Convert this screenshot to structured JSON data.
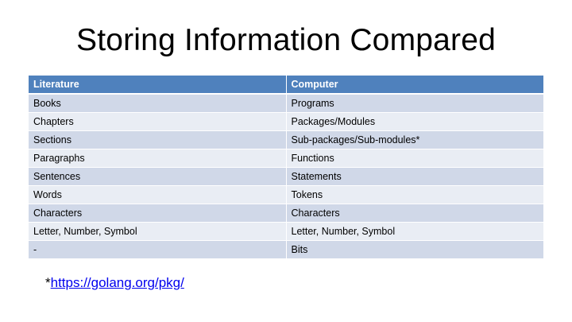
{
  "slide": {
    "title": "Storing Information Compared"
  },
  "table": {
    "headers": [
      "Literature",
      "Computer"
    ],
    "rows": [
      [
        "Books",
        "Programs"
      ],
      [
        "Chapters",
        "Packages/Modules"
      ],
      [
        "Sections",
        "Sub-packages/Sub-modules*"
      ],
      [
        "Paragraphs",
        "Functions"
      ],
      [
        "Sentences",
        "Statements"
      ],
      [
        "Words",
        "Tokens"
      ],
      [
        "Characters",
        "Characters"
      ],
      [
        "Letter, Number, Symbol",
        "Letter, Number, Symbol"
      ],
      [
        "-",
        "Bits"
      ]
    ]
  },
  "footnote": {
    "marker": "*",
    "link_text": "https://golang.org/pkg/"
  },
  "colors": {
    "header_bg": "#4f81bd",
    "row_odd_bg": "#d0d8e8",
    "row_even_bg": "#e9edf4",
    "link": "#0000ee"
  }
}
